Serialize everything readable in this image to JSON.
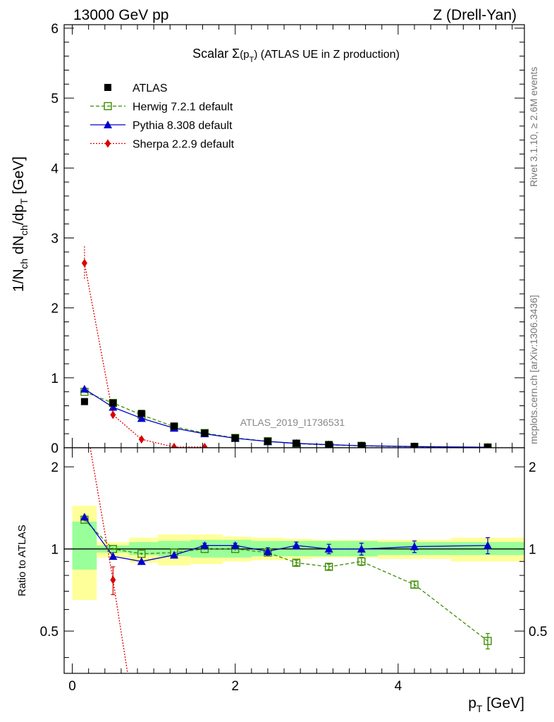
{
  "header": {
    "left": "13000 GeV pp",
    "right": "Z (Drell-Yan)"
  },
  "side_labels": {
    "rivet": "Rivet 3.1.10, ≥ 2.6M events",
    "source": "mcplots.cern.ch [arXiv:1306.3436]"
  },
  "chart_data": [
    {
      "type": "line",
      "panel": "main",
      "title_prefix": "Scalar ",
      "title_symbol": "Σ",
      "title_arg": "(p",
      "title_arg_sub": "T",
      "title_arg_close": ")",
      "title_suffix": " (ATLAS UE in Z production)",
      "ylabel": "1/N_ch dN_ch/dp_T [GeV]",
      "ylabel_parts": {
        "a": "1/N",
        "a_sub": "ch",
        "b": " dN",
        "b_sub": "ch",
        "c": "/dp",
        "c_sub": "T",
        "d": " [GeV]"
      },
      "watermark": "ATLAS_2019_I1736531",
      "xlim": [
        -0.1,
        5.55
      ],
      "ylim": [
        0,
        6.05
      ],
      "yticks": [
        0,
        1,
        2,
        3,
        4,
        5,
        6
      ],
      "legend_position": "top-left",
      "series": [
        {
          "name": "ATLAS",
          "style": "data",
          "color": "#000000",
          "x": [
            0.15,
            0.5,
            0.85,
            1.25,
            1.625,
            2.0,
            2.4,
            2.75,
            3.15,
            3.55,
            4.2,
            5.1
          ],
          "y": [
            0.66,
            0.64,
            0.49,
            0.31,
            0.21,
            0.14,
            0.095,
            0.065,
            0.045,
            0.03,
            0.018,
            0.008
          ]
        },
        {
          "name": "Herwig 7.2.1 default",
          "style": "herwig",
          "color": "#3d8c00",
          "x": [
            0.15,
            0.5,
            0.85,
            1.25,
            1.625,
            2.0,
            2.4,
            2.75,
            3.15,
            3.55,
            4.2,
            5.1
          ],
          "y": [
            0.8,
            0.64,
            0.47,
            0.3,
            0.21,
            0.14,
            0.092,
            0.058,
            0.039,
            0.027,
            0.013,
            0.004
          ]
        },
        {
          "name": "Pythia 8.308 default",
          "style": "pythia",
          "color": "#0000cc",
          "x": [
            0.15,
            0.5,
            0.85,
            1.25,
            1.625,
            2.0,
            2.4,
            2.75,
            3.15,
            3.55,
            4.2,
            5.1
          ],
          "y": [
            0.84,
            0.58,
            0.42,
            0.28,
            0.2,
            0.135,
            0.09,
            0.063,
            0.043,
            0.029,
            0.017,
            0.007
          ]
        },
        {
          "name": "Sherpa 2.2.9 default",
          "style": "sherpa",
          "color": "#dd0000",
          "x": [
            0.15,
            0.5,
            0.85,
            1.25,
            1.625
          ],
          "y": [
            2.64,
            0.47,
            0.12,
            0.01,
            0.01
          ]
        }
      ]
    },
    {
      "type": "line",
      "panel": "ratio",
      "ylabel": "Ratio to ATLAS",
      "xlabel": "p_T [GeV]",
      "xlabel_parts": {
        "a": "p",
        "a_sub": "T",
        "b": " [GeV]"
      },
      "xlim": [
        -0.1,
        5.55
      ],
      "ylim": [
        0.35,
        2.35
      ],
      "yticks": [
        0.5,
        1,
        2
      ],
      "xticks": [
        0,
        2,
        4
      ],
      "reference": 1,
      "bands": {
        "edges": [
          0.0,
          0.3,
          0.7,
          1.05,
          1.45,
          1.85,
          2.2,
          2.6,
          2.95,
          3.35,
          3.75,
          4.65,
          5.55
        ],
        "green": [
          [
            0.84,
            1.26
          ],
          [
            0.97,
            1.03
          ],
          [
            0.95,
            1.06
          ],
          [
            0.94,
            1.07
          ],
          [
            0.93,
            1.08
          ],
          [
            0.93,
            1.08
          ],
          [
            0.94,
            1.07
          ],
          [
            0.94,
            1.07
          ],
          [
            0.94,
            1.07
          ],
          [
            0.94,
            1.07
          ],
          [
            0.95,
            1.06
          ],
          [
            0.95,
            1.06
          ]
        ],
        "yellow": [
          [
            0.65,
            1.44
          ],
          [
            0.93,
            1.06
          ],
          [
            0.89,
            1.1
          ],
          [
            0.87,
            1.13
          ],
          [
            0.88,
            1.13
          ],
          [
            0.9,
            1.11
          ],
          [
            0.91,
            1.1
          ],
          [
            0.92,
            1.09
          ],
          [
            0.93,
            1.08
          ],
          [
            0.93,
            1.08
          ],
          [
            0.92,
            1.08
          ],
          [
            0.9,
            1.1
          ]
        ]
      },
      "series": [
        {
          "name": "Herwig 7.2.1 default",
          "style": "herwig",
          "color": "#3d8c00",
          "x": [
            0.15,
            0.5,
            0.85,
            1.25,
            1.625,
            2.0,
            2.4,
            2.75,
            3.15,
            3.55,
            4.2,
            5.1
          ],
          "y": [
            1.28,
            1.0,
            0.96,
            0.97,
            1.0,
            1.0,
            0.97,
            0.89,
            0.86,
            0.9,
            0.74,
            0.46
          ],
          "err": [
            0.02,
            0.01,
            0.01,
            0.01,
            0.01,
            0.015,
            0.02,
            0.02,
            0.02,
            0.03,
            0.02,
            0.03
          ]
        },
        {
          "name": "Pythia 8.308 default",
          "style": "pythia",
          "color": "#0000cc",
          "x": [
            0.15,
            0.5,
            0.85,
            1.25,
            1.625,
            2.0,
            2.4,
            2.75,
            3.15,
            3.55,
            4.2,
            5.1
          ],
          "y": [
            1.31,
            0.94,
            0.9,
            0.95,
            1.03,
            1.03,
            0.98,
            1.03,
            1.0,
            1.0,
            1.02,
            1.03
          ],
          "err": [
            0.02,
            0.01,
            0.01,
            0.01,
            0.02,
            0.02,
            0.03,
            0.03,
            0.04,
            0.05,
            0.05,
            0.07
          ]
        },
        {
          "name": "Sherpa 2.2.9 default",
          "style": "sherpa",
          "color": "#dd0000",
          "x": [
            0.5
          ],
          "y": [
            0.77
          ],
          "err": [
            0.09
          ],
          "line_x": [
            0.22,
            0.5,
            0.68
          ],
          "line_y": [
            2.35,
            0.77,
            0.35
          ]
        }
      ]
    }
  ]
}
